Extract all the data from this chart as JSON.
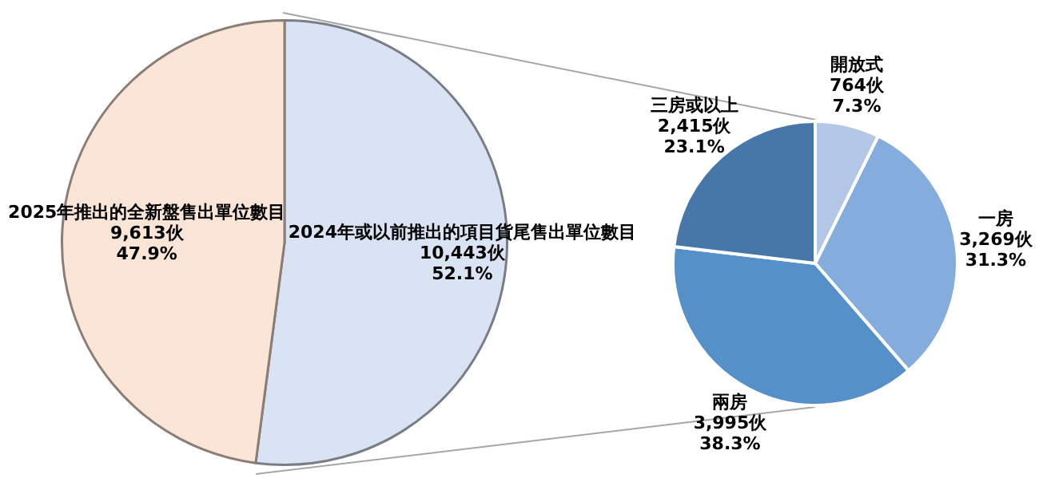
{
  "chart_data": [
    {
      "type": "pie",
      "categories": [
        "2024年或以前推出的項目貨尾售出單位數目",
        "2025年推出的全新盤售出單位數目"
      ],
      "values": [
        10443,
        9613
      ],
      "colors": [
        "#dae3f3",
        "#fbe5d6"
      ],
      "value_labels": [
        "10,443伙\n52.1%",
        "9,613伙\n47.9%"
      ]
    },
    {
      "type": "pie",
      "categories": [
        "開放式",
        "一房",
        "兩房",
        "三房或以上"
      ],
      "values": [
        764,
        3269,
        3995,
        2415
      ],
      "colors": [
        "#b4c7e7",
        "#84acdc",
        "#5590c8",
        "#4677a8"
      ],
      "value_labels": [
        "764伙\n7.3%",
        "3,269伙\n31.3%",
        "3,995伙\n38.3%",
        "2,415伙\n23.1%"
      ]
    }
  ]
}
